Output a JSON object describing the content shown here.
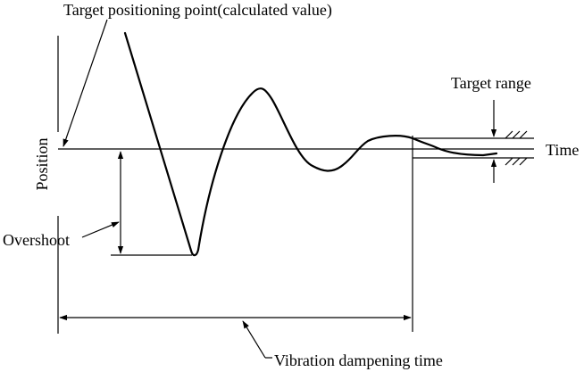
{
  "labels": {
    "target_point": "Target positioning point(calculated value)",
    "target_range": "Target range",
    "time_axis": "Time",
    "position_axis": "Position",
    "overshoot": "Overshoot",
    "dampening": "Vibration dampening time"
  }
}
